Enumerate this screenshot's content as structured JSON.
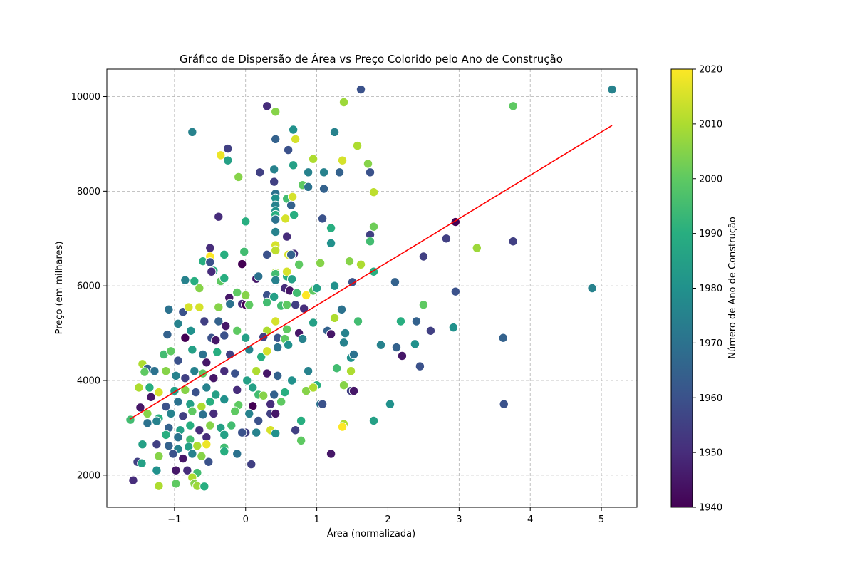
{
  "chart_data": {
    "type": "scatter",
    "title": "Gráfico de Dispersão de Área vs Preço Colorido pelo Ano de Construção",
    "xlabel": "Área (normalizada)",
    "ylabel": "Preço (em milhares)",
    "xlim": [
      -1.95,
      5.5
    ],
    "ylim": [
      1320,
      10580
    ],
    "xticks": [
      -1,
      0,
      1,
      2,
      3,
      4,
      5
    ],
    "xtick_labels": [
      "−1",
      "0",
      "1",
      "2",
      "3",
      "4",
      "5"
    ],
    "yticks": [
      2000,
      4000,
      6000,
      8000,
      10000
    ],
    "ytick_labels": [
      "2000",
      "4000",
      "6000",
      "8000",
      "10000"
    ],
    "grid": true,
    "colormap": "viridis",
    "colorbar": {
      "label": "Número de Ano de Construção",
      "range": [
        1940,
        2020
      ],
      "ticks": [
        1940,
        1950,
        1960,
        1970,
        1980,
        1990,
        2000,
        2010,
        2020
      ],
      "tick_labels": [
        "1940",
        "1950",
        "1960",
        "1970",
        "1980",
        "1990",
        "2000",
        "2010",
        "2020"
      ]
    },
    "trend_line": {
      "color": "#ff0000",
      "x": [
        -1.63,
        5.15
      ],
      "y": [
        3180,
        9390
      ]
    },
    "points": [
      [
        -0.75,
        9250,
        1975
      ],
      [
        -0.25,
        8900,
        1955
      ],
      [
        0.3,
        9800,
        1950
      ],
      [
        0.42,
        9680,
        2005
      ],
      [
        0.42,
        9100,
        1965
      ],
      [
        0.67,
        9300,
        1980
      ],
      [
        0.7,
        9100,
        2015
      ],
      [
        1.25,
        9250,
        1975
      ],
      [
        1.38,
        9880,
        2008
      ],
      [
        1.62,
        10150,
        1960
      ],
      [
        3.76,
        9800,
        2000
      ],
      [
        5.15,
        10150,
        1975
      ],
      [
        -0.35,
        8760,
        2018
      ],
      [
        -0.25,
        8650,
        1985
      ],
      [
        0.6,
        8870,
        1960
      ],
      [
        0.95,
        8680,
        2010
      ],
      [
        1.57,
        8960,
        2010
      ],
      [
        0.67,
        8550,
        1985
      ],
      [
        1.72,
        8580,
        2005
      ],
      [
        -0.1,
        8300,
        2005
      ],
      [
        0.2,
        8400,
        1955
      ],
      [
        0.4,
        8460,
        1975
      ],
      [
        0.88,
        8400,
        1975
      ],
      [
        1.1,
        8400,
        1975
      ],
      [
        1.32,
        8400,
        1965
      ],
      [
        1.36,
        8650,
        2015
      ],
      [
        1.75,
        8400,
        1960
      ],
      [
        0.4,
        8200,
        1955
      ],
      [
        0.8,
        8130,
        2000
      ],
      [
        0.88,
        8090,
        1970
      ],
      [
        1.1,
        8050,
        1965
      ],
      [
        1.8,
        7980,
        2012
      ],
      [
        0.42,
        7950,
        1970
      ],
      [
        0.42,
        7850,
        1980
      ],
      [
        0.58,
        7840,
        1995
      ],
      [
        0.66,
        7880,
        2015
      ],
      [
        0.64,
        7700,
        1965
      ],
      [
        0.42,
        7700,
        1975
      ],
      [
        0.42,
        7580,
        1980
      ],
      [
        0.42,
        7500,
        1990
      ],
      [
        0.42,
        7400,
        1970
      ],
      [
        0.56,
        7420,
        2015
      ],
      [
        0.68,
        7500,
        1990
      ],
      [
        1.08,
        7420,
        1960
      ],
      [
        -0.38,
        7460,
        1950
      ],
      [
        0.0,
        7360,
        1990
      ],
      [
        1.2,
        7220,
        1990
      ],
      [
        1.8,
        7250,
        2002
      ],
      [
        0.42,
        7140,
        1975
      ],
      [
        0.58,
        7040,
        1950
      ],
      [
        1.75,
        7080,
        1955
      ],
      [
        1.75,
        6940,
        1995
      ],
      [
        2.82,
        7000,
        1955
      ],
      [
        2.95,
        7350,
        1940
      ],
      [
        3.25,
        6800,
        2008
      ],
      [
        3.76,
        6940,
        1955
      ],
      [
        -0.5,
        6800,
        1950
      ],
      [
        -0.3,
        6660,
        1990
      ],
      [
        0.3,
        6660,
        1960
      ],
      [
        0.42,
        6860,
        2015
      ],
      [
        0.42,
        6750,
        2012
      ],
      [
        0.6,
        6660,
        2015
      ],
      [
        0.68,
        6680,
        1950
      ],
      [
        0.64,
        6660,
        1965
      ],
      [
        1.2,
        6900,
        1980
      ],
      [
        1.05,
        6480,
        2005
      ],
      [
        1.46,
        6520,
        2005
      ],
      [
        1.62,
        6450,
        2010
      ],
      [
        2.5,
        6620,
        1955
      ],
      [
        -0.6,
        6520,
        1990
      ],
      [
        -0.5,
        6620,
        2020
      ],
      [
        -0.5,
        6500,
        1960
      ],
      [
        -0.45,
        6320,
        1990
      ],
      [
        -0.48,
        6300,
        1950
      ],
      [
        -0.05,
        6460,
        1940
      ],
      [
        -0.02,
        6720,
        1995
      ],
      [
        0.42,
        6280,
        2010
      ],
      [
        0.58,
        6200,
        1990
      ],
      [
        0.58,
        6300,
        2015
      ],
      [
        0.75,
        6450,
        2000
      ],
      [
        1.8,
        6300,
        1990
      ],
      [
        -0.72,
        6100,
        1990
      ],
      [
        -0.85,
        6120,
        1975
      ],
      [
        -0.35,
        6100,
        2000
      ],
      [
        -0.3,
        6160,
        1990
      ],
      [
        0.15,
        6150,
        1945
      ],
      [
        0.18,
        6200,
        1970
      ],
      [
        0.42,
        6250,
        1995
      ],
      [
        0.42,
        6120,
        1975
      ],
      [
        0.65,
        6140,
        1985
      ],
      [
        1.25,
        6000,
        1980
      ],
      [
        1.5,
        6080,
        1960
      ],
      [
        2.1,
        6080,
        1965
      ],
      [
        2.95,
        5880,
        1960
      ],
      [
        4.87,
        5950,
        1975
      ],
      [
        -0.65,
        5950,
        2005
      ],
      [
        -0.23,
        5750,
        1945
      ],
      [
        -0.12,
        5860,
        2000
      ],
      [
        0.0,
        5800,
        2005
      ],
      [
        0.3,
        5800,
        1960
      ],
      [
        0.4,
        5770,
        1985
      ],
      [
        0.55,
        5950,
        1950
      ],
      [
        0.62,
        5900,
        1945
      ],
      [
        0.72,
        5850,
        1995
      ],
      [
        0.85,
        5800,
        2020
      ],
      [
        0.95,
        5900,
        2000
      ],
      [
        1.0,
        5950,
        1985
      ],
      [
        -1.08,
        5500,
        1970
      ],
      [
        -0.88,
        5450,
        1960
      ],
      [
        -0.8,
        5550,
        2015
      ],
      [
        -0.65,
        5550,
        2015
      ],
      [
        -0.58,
        5250,
        1955
      ],
      [
        -0.38,
        5550,
        2005
      ],
      [
        -0.22,
        5620,
        1970
      ],
      [
        -0.05,
        5620,
        1950
      ],
      [
        0.0,
        5600,
        1940
      ],
      [
        0.05,
        5600,
        2000
      ],
      [
        0.3,
        5650,
        1995
      ],
      [
        0.5,
        5580,
        1995
      ],
      [
        0.58,
        5600,
        2000
      ],
      [
        0.7,
        5600,
        1955
      ],
      [
        0.82,
        5520,
        1950
      ],
      [
        0.95,
        5220,
        1985
      ],
      [
        1.35,
        5500,
        1970
      ],
      [
        1.58,
        5250,
        1995
      ],
      [
        2.18,
        5250,
        1990
      ],
      [
        2.4,
        5250,
        1965
      ],
      [
        2.5,
        5600,
        2000
      ],
      [
        2.92,
        5120,
        1980
      ],
      [
        -0.95,
        5200,
        1975
      ],
      [
        -0.77,
        5050,
        1980
      ],
      [
        -0.38,
        5250,
        1965
      ],
      [
        -0.28,
        5150,
        1945
      ],
      [
        -0.12,
        5050,
        2000
      ],
      [
        0.3,
        5050,
        2010
      ],
      [
        0.42,
        5250,
        2015
      ],
      [
        0.58,
        5080,
        2000
      ],
      [
        0.75,
        5000,
        1945
      ],
      [
        1.15,
        5050,
        1965
      ],
      [
        1.25,
        5320,
        2010
      ],
      [
        1.4,
        5000,
        1975
      ],
      [
        -1.1,
        4970,
        1965
      ],
      [
        -0.85,
        4900,
        1940
      ],
      [
        -0.48,
        4900,
        1960
      ],
      [
        -0.42,
        4850,
        1945
      ],
      [
        -0.3,
        4950,
        1960
      ],
      [
        0.0,
        4900,
        1985
      ],
      [
        0.25,
        4920,
        1955
      ],
      [
        0.45,
        4900,
        1960
      ],
      [
        0.55,
        4880,
        2000
      ],
      [
        0.8,
        4880,
        1975
      ],
      [
        1.2,
        4980,
        1945
      ],
      [
        1.38,
        4800,
        1975
      ],
      [
        1.9,
        4750,
        1975
      ],
      [
        2.12,
        4700,
        1965
      ],
      [
        2.38,
        4770,
        1980
      ],
      [
        2.6,
        5050,
        1955
      ],
      [
        3.62,
        4900,
        1965
      ],
      [
        -1.45,
        4350,
        2010
      ],
      [
        -1.38,
        4250,
        1965
      ],
      [
        -1.28,
        4200,
        1970
      ],
      [
        -1.15,
        4550,
        1995
      ],
      [
        -1.05,
        4620,
        2000
      ],
      [
        -0.95,
        4420,
        1960
      ],
      [
        -0.75,
        4650,
        1985
      ],
      [
        -0.6,
        4550,
        1970
      ],
      [
        -0.55,
        4380,
        1945
      ],
      [
        -0.4,
        4600,
        1990
      ],
      [
        -0.22,
        4550,
        1955
      ],
      [
        0.05,
        4650,
        1975
      ],
      [
        0.22,
        4500,
        1990
      ],
      [
        0.3,
        4620,
        2015
      ],
      [
        0.45,
        4700,
        1970
      ],
      [
        0.6,
        4750,
        1980
      ],
      [
        1.48,
        4480,
        1980
      ],
      [
        1.52,
        4550,
        1970
      ],
      [
        2.2,
        4520,
        1945
      ],
      [
        2.45,
        4300,
        1960
      ],
      [
        -1.42,
        4180,
        2000
      ],
      [
        -1.12,
        4200,
        2005
      ],
      [
        -0.98,
        4100,
        1975
      ],
      [
        -0.85,
        4050,
        1955
      ],
      [
        -0.72,
        4200,
        1975
      ],
      [
        -0.6,
        4150,
        2000
      ],
      [
        -0.45,
        4050,
        1945
      ],
      [
        -0.3,
        4200,
        1950
      ],
      [
        -0.15,
        4150,
        1960
      ],
      [
        0.02,
        4000,
        1985
      ],
      [
        0.15,
        4200,
        2010
      ],
      [
        0.3,
        4150,
        1945
      ],
      [
        0.45,
        4100,
        1965
      ],
      [
        0.65,
        4000,
        1980
      ],
      [
        0.88,
        4200,
        1975
      ],
      [
        1.0,
        3900,
        1990
      ],
      [
        1.28,
        4260,
        1995
      ],
      [
        1.48,
        4200,
        2010
      ],
      [
        -1.35,
        3850,
        1990
      ],
      [
        -1.5,
        3850,
        2010
      ],
      [
        -1.22,
        3750,
        2015
      ],
      [
        -1.0,
        3780,
        1985
      ],
      [
        -0.85,
        3800,
        2005
      ],
      [
        -0.7,
        3750,
        1960
      ],
      [
        -0.55,
        3850,
        1975
      ],
      [
        -0.42,
        3700,
        1985
      ],
      [
        -0.12,
        3800,
        1950
      ],
      [
        0.1,
        3850,
        1985
      ],
      [
        0.18,
        3700,
        1995
      ],
      [
        0.25,
        3680,
        2005
      ],
      [
        0.4,
        3700,
        1965
      ],
      [
        0.55,
        3750,
        1990
      ],
      [
        0.85,
        3780,
        2005
      ],
      [
        0.95,
        3850,
        2010
      ],
      [
        1.38,
        3900,
        2005
      ],
      [
        1.48,
        3780,
        1955
      ],
      [
        1.52,
        3780,
        1945
      ],
      [
        -1.33,
        3650,
        1945
      ],
      [
        -1.12,
        3450,
        1960
      ],
      [
        -0.95,
        3550,
        1970
      ],
      [
        -0.78,
        3500,
        1985
      ],
      [
        -0.62,
        3450,
        2010
      ],
      [
        -0.5,
        3550,
        1990
      ],
      [
        -0.3,
        3600,
        1980
      ],
      [
        -0.1,
        3480,
        2000
      ],
      [
        0.1,
        3460,
        1940
      ],
      [
        0.35,
        3500,
        1950
      ],
      [
        0.5,
        3550,
        2000
      ],
      [
        1.05,
        3500,
        1970
      ],
      [
        1.08,
        3500,
        1960
      ],
      [
        2.03,
        3500,
        1980
      ],
      [
        3.63,
        3500,
        1960
      ],
      [
        -1.48,
        3430,
        1945
      ],
      [
        -1.38,
        3300,
        2005
      ],
      [
        -1.22,
        3200,
        1990
      ],
      [
        -1.05,
        3300,
        1975
      ],
      [
        -0.88,
        3250,
        1955
      ],
      [
        -0.75,
        3350,
        2000
      ],
      [
        -0.6,
        3280,
        1970
      ],
      [
        -0.45,
        3300,
        1950
      ],
      [
        -0.15,
        3350,
        2000
      ],
      [
        0.05,
        3300,
        1975
      ],
      [
        0.18,
        3150,
        1960
      ],
      [
        0.35,
        3300,
        1955
      ],
      [
        0.42,
        3300,
        1945
      ],
      [
        0.78,
        3150,
        1990
      ],
      [
        1.38,
        3080,
        2010
      ],
      [
        1.8,
        3150,
        1985
      ],
      [
        -1.62,
        3170,
        1995
      ],
      [
        -1.38,
        3100,
        1970
      ],
      [
        -1.25,
        3140,
        1975
      ],
      [
        -1.08,
        3000,
        1965
      ],
      [
        -0.92,
        2950,
        1985
      ],
      [
        -0.78,
        3050,
        1990
      ],
      [
        -0.65,
        2950,
        1950
      ],
      [
        -0.5,
        3050,
        2005
      ],
      [
        -0.35,
        3000,
        1985
      ],
      [
        -0.2,
        3050,
        1995
      ],
      [
        0.0,
        2900,
        1955
      ],
      [
        0.15,
        2900,
        1975
      ],
      [
        0.35,
        2950,
        2015
      ],
      [
        0.42,
        2880,
        1980
      ],
      [
        0.7,
        2950,
        1955
      ],
      [
        1.36,
        3020,
        2020
      ],
      [
        -1.12,
        2850,
        1990
      ],
      [
        -0.95,
        2800,
        1970
      ],
      [
        -0.78,
        2750,
        1995
      ],
      [
        -0.55,
        2800,
        1950
      ],
      [
        -0.3,
        2850,
        1985
      ],
      [
        -0.05,
        2900,
        1960
      ],
      [
        -1.25,
        2650,
        1955
      ],
      [
        -1.08,
        2620,
        1965
      ],
      [
        -0.95,
        2550,
        1975
      ],
      [
        -0.8,
        2600,
        1985
      ],
      [
        -0.68,
        2620,
        2010
      ],
      [
        -0.55,
        2650,
        2018
      ],
      [
        -0.3,
        2580,
        1995
      ],
      [
        -1.45,
        2650,
        1985
      ],
      [
        -1.22,
        2400,
        2005
      ],
      [
        -1.02,
        2450,
        1960
      ],
      [
        -0.88,
        2350,
        1945
      ],
      [
        -0.75,
        2450,
        1975
      ],
      [
        -0.62,
        2400,
        2005
      ],
      [
        -0.3,
        2500,
        1990
      ],
      [
        -0.12,
        2450,
        1970
      ],
      [
        0.78,
        2730,
        2000
      ],
      [
        1.2,
        2450,
        1945
      ],
      [
        -1.52,
        2280,
        1955
      ],
      [
        -1.46,
        2250,
        1985
      ],
      [
        -1.25,
        2100,
        1980
      ],
      [
        -0.98,
        2100,
        1945
      ],
      [
        -0.82,
        2100,
        1950
      ],
      [
        -0.68,
        2050,
        1995
      ],
      [
        -0.52,
        2280,
        1960
      ],
      [
        0.08,
        2230,
        1955
      ],
      [
        -1.58,
        1890,
        1950
      ],
      [
        -1.22,
        1770,
        2010
      ],
      [
        -0.98,
        1820,
        2000
      ],
      [
        -0.75,
        1950,
        2010
      ],
      [
        -0.72,
        1820,
        2005
      ],
      [
        -0.68,
        1770,
        2008
      ],
      [
        -0.58,
        1760,
        1990
      ]
    ]
  }
}
